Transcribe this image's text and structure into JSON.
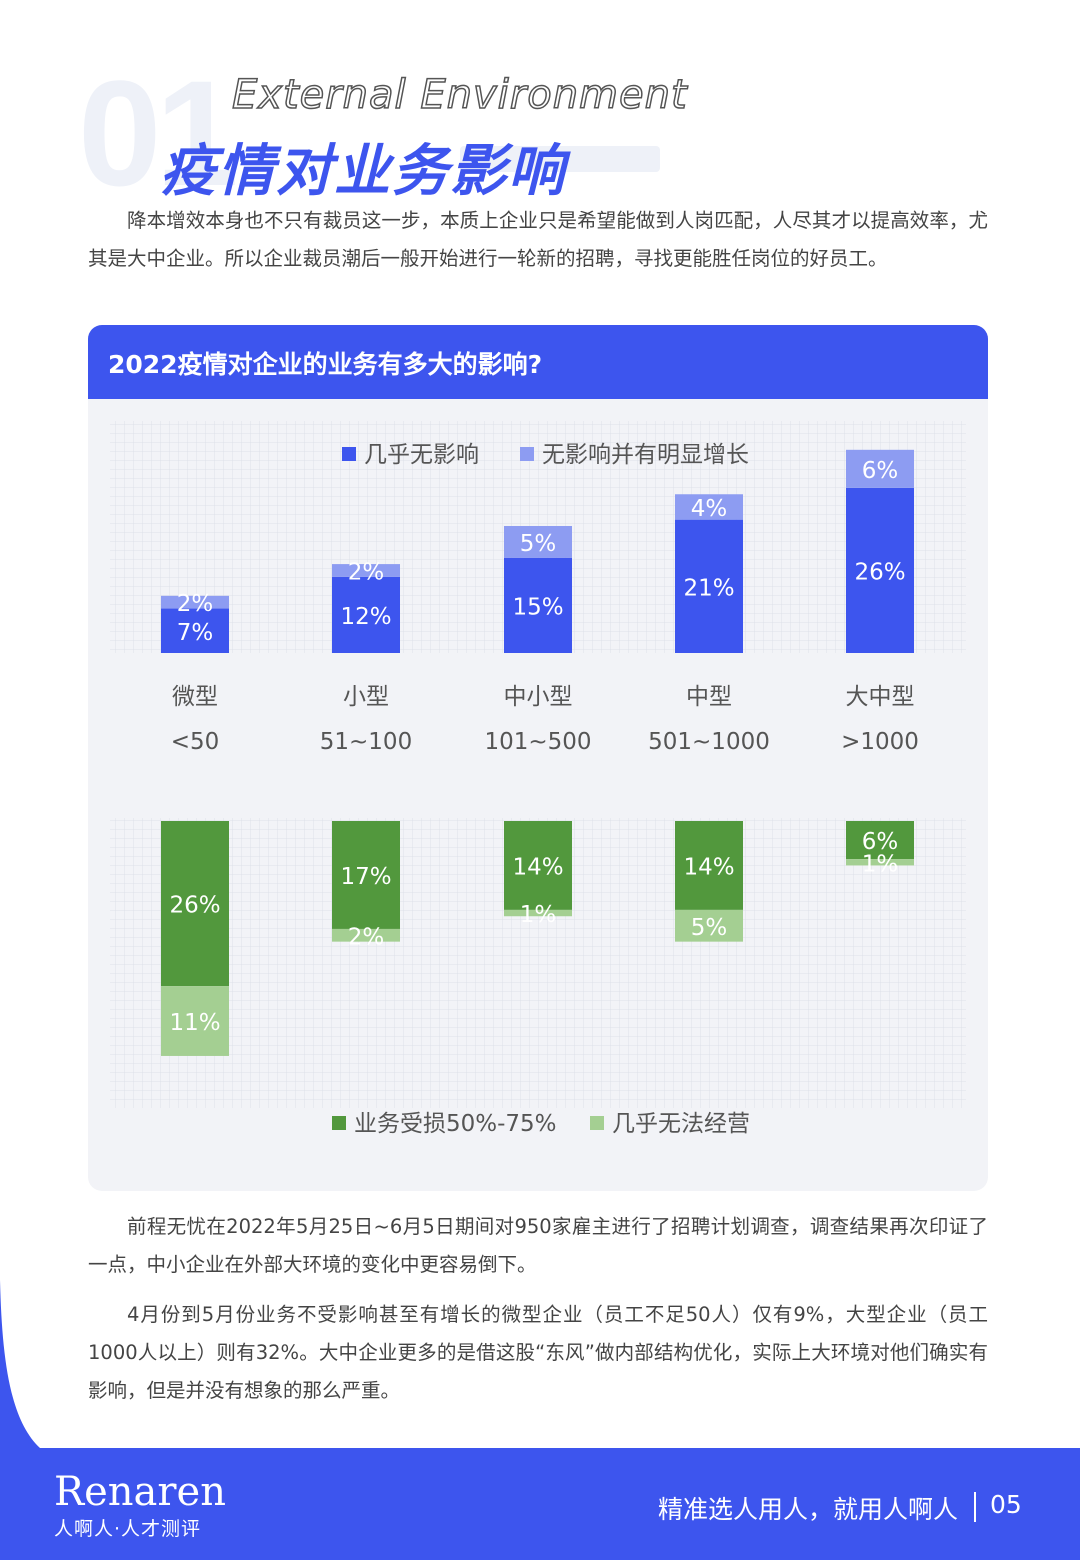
{
  "header": {
    "section_number": "01",
    "title_en": "External Environment",
    "title_cn": "疫情对业务影响"
  },
  "paragraphs": {
    "intro": "降本增效本身也不只有裁员这一步，本质上企业只是希望能做到人岗匹配，人尽其才以提高效率，尤其是大中企业。所以企业裁员潮后一般开始进行一轮新的招聘，寻找更能胜任岗位的好员工。",
    "p2": "前程无忧在2022年5月25日~6月5日期间对950家雇主进行了招聘计划调查，调查结果再次印证了一点，中小企业在外部大环境的变化中更容易倒下。",
    "p3": "4月份到5月份业务不受影响甚至有增长的微型企业（员工不足50人）仅有9%，大型企业（员工1000人以上）则有32%。大中企业更多的是借这股“东风”做内部结构优化，实际上大环境对他们确实有影响，但是并没有想象的那么严重。"
  },
  "card": {
    "title": "2022疫情对企业的业务有多大的影响?"
  },
  "colors": {
    "primary": "#3d55ee",
    "light_blue": "#8d9cf2",
    "dark_green": "#52983d",
    "light_green": "#a4cf92"
  },
  "chart_data": {
    "type": "bar",
    "stacked": true,
    "categories": [
      "微型",
      "小型",
      "中小型",
      "中型",
      "大中型"
    ],
    "category_ranges": [
      "<50",
      "51~100",
      "101~500",
      "501~1000",
      ">1000"
    ],
    "positive": {
      "legend_position": "top",
      "series": [
        {
          "name": "几乎无影响",
          "color": "#3d55ee",
          "values": [
            7,
            12,
            15,
            21,
            26
          ]
        },
        {
          "name": "无影响并有明显增长",
          "color": "#8d9cf2",
          "values": [
            2,
            2,
            5,
            4,
            6
          ]
        }
      ]
    },
    "negative": {
      "legend_position": "bottom",
      "series": [
        {
          "name": "业务受损50%-75%",
          "color": "#52983d",
          "values": [
            26,
            17,
            14,
            14,
            6
          ]
        },
        {
          "name": "几乎无法经营",
          "color": "#a4cf92",
          "values": [
            11,
            2,
            1,
            5,
            1
          ]
        }
      ]
    },
    "value_suffix": "%",
    "grid": true
  },
  "footer": {
    "logo": "Renaren",
    "logo_sub": "人啊人·人才测评",
    "slogan": "精准选人用人，就用人啊人",
    "page_number": "05"
  }
}
